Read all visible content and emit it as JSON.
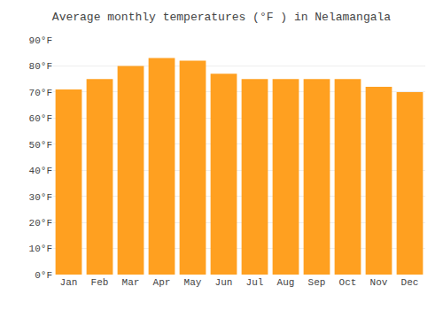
{
  "chart_data": {
    "type": "bar",
    "title": "Average monthly temperatures (°F ) in Nelamangala",
    "categories": [
      "Jan",
      "Feb",
      "Mar",
      "Apr",
      "May",
      "Jun",
      "Jul",
      "Aug",
      "Sep",
      "Oct",
      "Nov",
      "Dec"
    ],
    "values": [
      71,
      75,
      80,
      83,
      82,
      77,
      75,
      75,
      75,
      75,
      72,
      70
    ],
    "color": "#FFA020",
    "ylim": [
      0,
      90
    ],
    "yticks": [
      {
        "value": 0,
        "label": "0°F"
      },
      {
        "value": 10,
        "label": "10°F"
      },
      {
        "value": 20,
        "label": "20°F"
      },
      {
        "value": 30,
        "label": "30°F"
      },
      {
        "value": 40,
        "label": "40°F"
      },
      {
        "value": 50,
        "label": "50°F"
      },
      {
        "value": 60,
        "label": "60°F"
      },
      {
        "value": 70,
        "label": "70°F"
      },
      {
        "value": 80,
        "label": "80°F"
      },
      {
        "value": 90,
        "label": "90°F"
      }
    ],
    "grid": true
  }
}
